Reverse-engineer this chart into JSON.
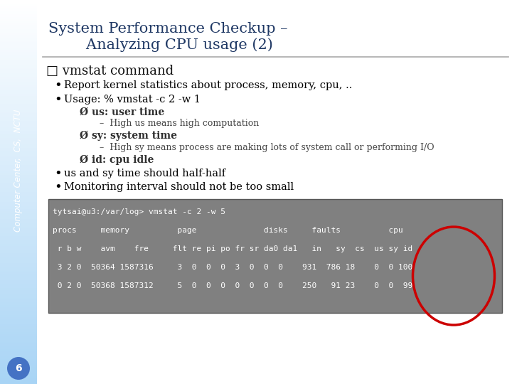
{
  "title_line1": "System Performance Checkup –",
  "title_line2": "        Analyzing CPU usage (2)",
  "sidebar_text": "Computer Center,  CS,  NCTU",
  "sidebar_bg_top": "#a8d4f5",
  "sidebar_bg_bottom": "#e8f4fc",
  "main_bg": "#ffffff",
  "title_color": "#1f3864",
  "section_heading": "□ vmstat command",
  "bullet1": "Report kernel statistics about process, memory, cpu, ..",
  "bullet2": "Usage: % vmstat -c 2 -w 1",
  "sub1_arrow": "Ø us: user time",
  "sub1_detail": "–  High us means high computation",
  "sub2_arrow": "Ø sy: system time",
  "sub2_detail": "–  High sy means process are making lots of system call or performing I/O",
  "sub3_arrow": "Ø id: cpu idle",
  "bullet3": "us and sy time should half-half",
  "bullet4": "Monitoring interval should not be too small",
  "terminal_bg": "#808080",
  "terminal_text_color": "#ffffff",
  "terminal_lines": [
    "tytsai@u3:/var/log> vmstat -c 2 -w 5",
    "procs     memory          page              disks     faults          cpu",
    " r b w    avm    fre     flt re pi po fr sr da0 da1   in   sy  cs  us sy id",
    " 3 2 0  50364 1587316     3  0  0  0  3  0  0  0    931  786 18    0  0 100",
    " 0 2 0  50368 1587312     5  0  0  0  0  0  0  0    250   91 23    0  0  99"
  ],
  "circle_color": "#cc0000",
  "page_number": "6",
  "page_circle_color": "#4472c4"
}
